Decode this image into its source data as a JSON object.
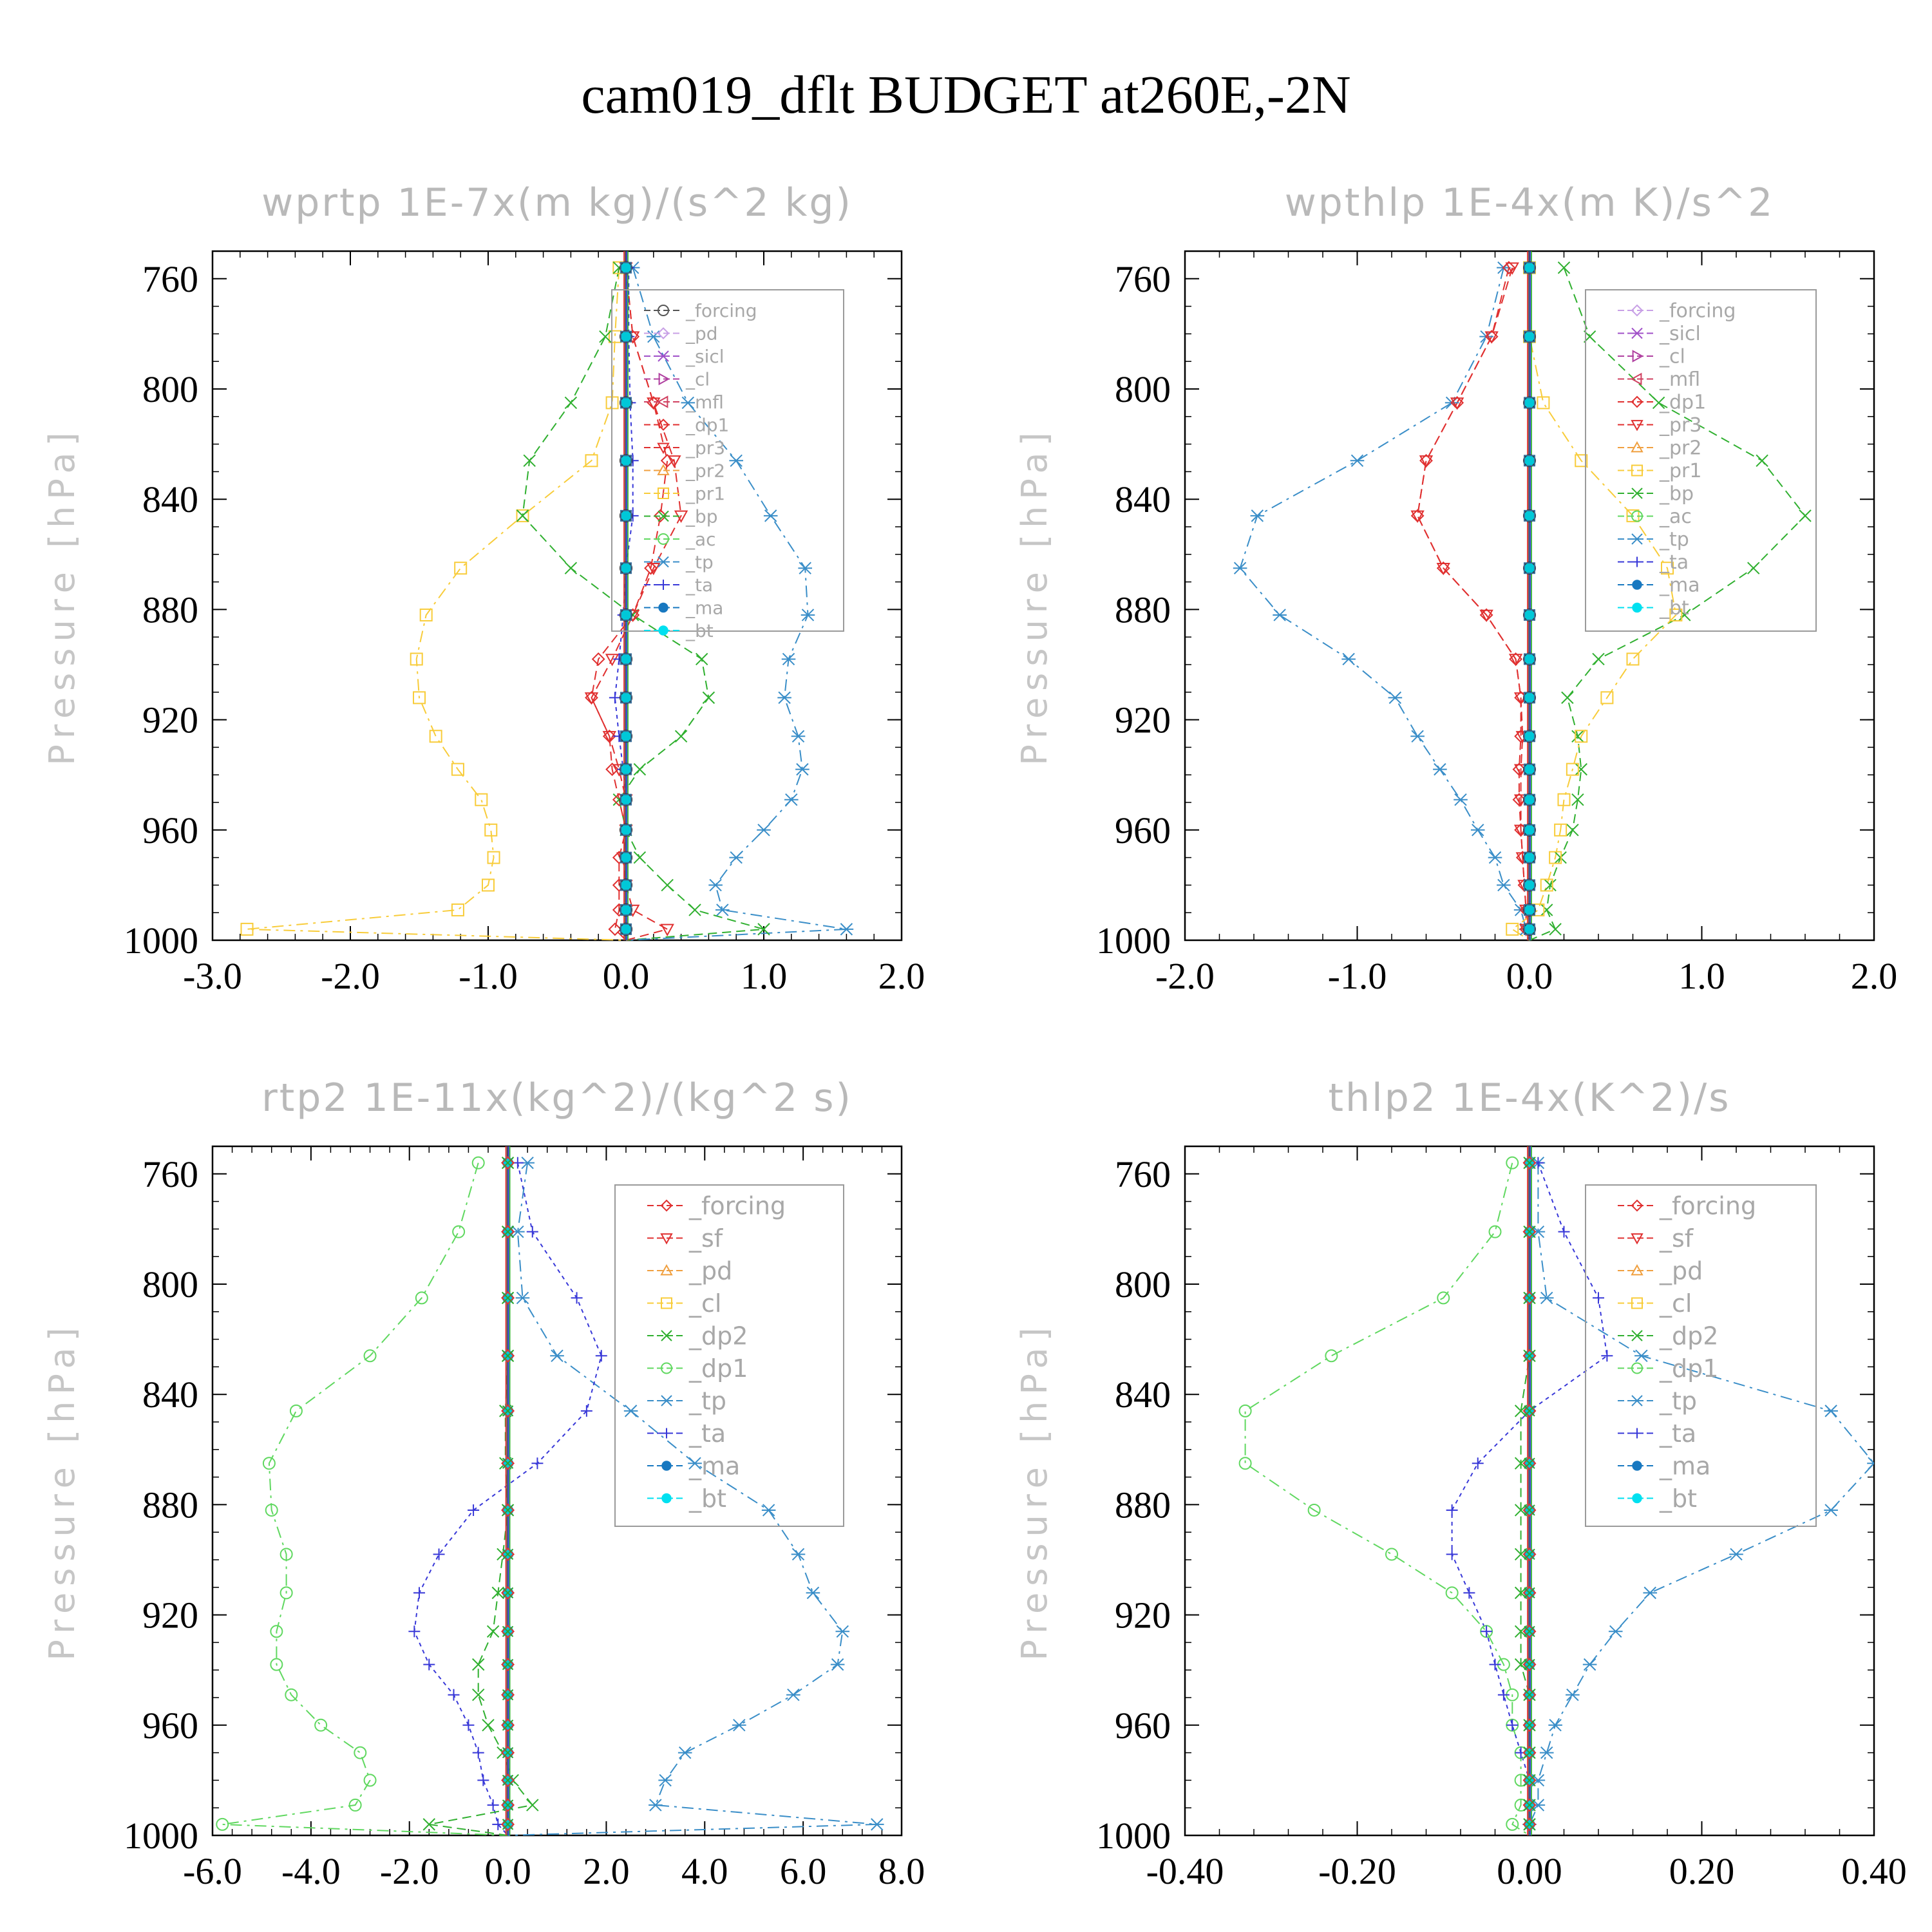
{
  "title": "cam019_dflt  BUDGET at260E,-2N",
  "ylabel": "Pressure [hPa]",
  "colors": {
    "forcing_dark": "#555555",
    "pd": "#c8a0e6",
    "sicl": "#a050c8",
    "cl_mag": "#b040a0",
    "mfl": "#d04060",
    "red": "#e03030",
    "orange": "#f0a040",
    "yellow": "#f8cc3a",
    "green": "#30b030",
    "lightgreen": "#60d860",
    "tp": "#3a8ec8",
    "ta": "#3838d8",
    "ma": "#1878c0",
    "bt": "#00e0f0"
  },
  "chart_data": [
    {
      "type": "line",
      "title": "wprtp  1E-7x(m kg)/(s^2 kg)",
      "ylabel": "Pressure [hPa]",
      "ylim": [
        1000,
        750
      ],
      "yticks": [
        760,
        800,
        840,
        880,
        920,
        960,
        1000
      ],
      "xlim": [
        -3.0,
        2.0
      ],
      "xticks": [
        -3.0,
        -2.0,
        -1.0,
        0.0,
        1.0,
        2.0
      ],
      "xtick_labels": [
        "-3.0",
        "-2.0",
        "-1.0",
        "0.0",
        "1.0",
        "2.0"
      ],
      "legend": [
        "_forcing",
        "_pd",
        "_sicl",
        "_cl",
        "_mfl",
        "_dp1",
        "_pr3",
        "_pr2",
        "_pr1",
        "_bp",
        "_ac",
        "_tp",
        "_ta",
        "_ma",
        "_bt"
      ],
      "levels": [
        756,
        781,
        805,
        826,
        846,
        865,
        882,
        898,
        912,
        926,
        938,
        949,
        960,
        970,
        980,
        989,
        996,
        1000
      ],
      "series": [
        {
          "name": "_pr1",
          "color": "#f8cc3a",
          "marker": "square",
          "dash": "18,8,4,8",
          "values": [
            -0.05,
            -0.08,
            -0.1,
            -0.25,
            -0.75,
            -1.2,
            -1.45,
            -1.52,
            -1.5,
            -1.38,
            -1.22,
            -1.05,
            -0.98,
            -0.96,
            -1.0,
            -1.22,
            -2.75,
            0.0
          ]
        },
        {
          "name": "_bp",
          "color": "#30b030",
          "marker": "x",
          "dash": "14,8",
          "values": [
            -0.05,
            -0.15,
            -0.4,
            -0.7,
            -0.75,
            -0.4,
            0.05,
            0.55,
            0.6,
            0.4,
            0.1,
            -0.05,
            0.0,
            0.1,
            0.3,
            0.5,
            1.0,
            0.0
          ]
        },
        {
          "name": "_tp",
          "color": "#3a8ec8",
          "marker": "asterisk",
          "dash": "18,8,4,8",
          "values": [
            0.05,
            0.2,
            0.45,
            0.8,
            1.05,
            1.3,
            1.32,
            1.18,
            1.15,
            1.25,
            1.28,
            1.2,
            1.0,
            0.8,
            0.65,
            0.7,
            1.6,
            0.0
          ]
        },
        {
          "name": "_dp1",
          "color": "#e03030",
          "marker": "diamond",
          "dash": "14,8",
          "values": [
            0.0,
            0.05,
            0.2,
            0.3,
            0.25,
            0.18,
            0.05,
            -0.2,
            -0.25,
            -0.12,
            -0.1,
            -0.05,
            0.0,
            -0.05,
            -0.05,
            -0.05,
            -0.08,
            0.0
          ]
        },
        {
          "name": "_pr3",
          "color": "#e03030",
          "marker": "triangle-down",
          "dash": "14,8",
          "values": [
            0.0,
            0.05,
            0.2,
            0.35,
            0.4,
            0.2,
            0.05,
            -0.1,
            -0.25,
            -0.12,
            -0.05,
            0.0,
            0.0,
            -0.02,
            0.0,
            0.05,
            0.3,
            0.0
          ]
        },
        {
          "name": "_ta",
          "color": "#3838d8",
          "marker": "plus",
          "dash": "6,6",
          "values": [
            0.02,
            0.02,
            0.03,
            0.05,
            0.05,
            0.0,
            -0.02,
            -0.05,
            -0.08,
            -0.05,
            -0.02,
            0.0,
            0.0,
            0.0,
            0.0,
            0.0,
            0.0,
            0.0
          ]
        },
        {
          "name": "_forcing",
          "color": "#555555",
          "marker": "circle",
          "dash": "",
          "values": [
            0,
            0,
            0,
            0,
            0,
            0,
            0,
            0,
            0,
            0,
            0,
            0,
            0,
            0,
            0,
            0,
            0,
            0
          ]
        },
        {
          "name": "_bt",
          "color": "#00e0f0",
          "marker": "dot",
          "dash": "",
          "values": [
            0,
            0,
            0,
            0,
            0,
            0,
            0,
            0,
            0,
            0,
            0,
            0,
            0,
            0,
            0,
            0,
            0,
            0
          ]
        }
      ]
    },
    {
      "type": "line",
      "title": "wpthlp  1E-4x(m K)/s^2",
      "ylabel": "Pressure [hPa]",
      "ylim": [
        1000,
        750
      ],
      "yticks": [
        760,
        800,
        840,
        880,
        920,
        960,
        1000
      ],
      "xlim": [
        -2.0,
        2.0
      ],
      "xticks": [
        -2.0,
        -1.0,
        0.0,
        1.0,
        2.0
      ],
      "xtick_labels": [
        "-2.0",
        "-1.0",
        "0.0",
        "1.0",
        "2.0"
      ],
      "legend": [
        "_forcing",
        "_sicl",
        "_cl",
        "_mfl",
        "_dp1",
        "_pr3",
        "_pr2",
        "_pr1",
        "_bp",
        "_ac",
        "_tp",
        "_ta",
        "_ma",
        "_bt"
      ],
      "levels": [
        756,
        781,
        805,
        826,
        846,
        865,
        882,
        898,
        912,
        926,
        938,
        949,
        960,
        970,
        980,
        989,
        996,
        1000
      ],
      "series": [
        {
          "name": "_tp",
          "color": "#3a8ec8",
          "marker": "asterisk",
          "dash": "18,8,4,8",
          "values": [
            -0.15,
            -0.25,
            -0.45,
            -1.0,
            -1.58,
            -1.68,
            -1.45,
            -1.05,
            -0.78,
            -0.65,
            -0.52,
            -0.4,
            -0.3,
            -0.2,
            -0.15,
            -0.05,
            -0.02,
            0.0
          ]
        },
        {
          "name": "_dp1",
          "color": "#e03030",
          "marker": "diamond",
          "dash": "14,8",
          "values": [
            -0.12,
            -0.22,
            -0.42,
            -0.6,
            -0.65,
            -0.5,
            -0.25,
            -0.08,
            -0.05,
            -0.05,
            -0.06,
            -0.06,
            -0.05,
            -0.04,
            -0.03,
            -0.02,
            -0.02,
            0.0
          ]
        },
        {
          "name": "_pr3",
          "color": "#e03030",
          "marker": "triangle-down",
          "dash": "14,8",
          "values": [
            -0.1,
            -0.22,
            -0.42,
            -0.6,
            -0.65,
            -0.5,
            -0.25,
            -0.08,
            -0.05,
            -0.04,
            -0.05,
            -0.05,
            -0.05,
            -0.04,
            -0.03,
            -0.02,
            -0.02,
            0.0
          ]
        },
        {
          "name": "_bp",
          "color": "#30b030",
          "marker": "x",
          "dash": "14,8",
          "values": [
            0.2,
            0.35,
            0.75,
            1.35,
            1.6,
            1.3,
            0.9,
            0.4,
            0.22,
            0.28,
            0.3,
            0.28,
            0.25,
            0.18,
            0.12,
            0.1,
            0.15,
            0.0
          ]
        },
        {
          "name": "_pr1",
          "color": "#f8cc3a",
          "marker": "square",
          "dash": "18,8,4,8",
          "values": [
            0.0,
            0.0,
            0.08,
            0.3,
            0.6,
            0.8,
            0.85,
            0.6,
            0.45,
            0.3,
            0.25,
            0.2,
            0.18,
            0.15,
            0.1,
            0.05,
            -0.1,
            0.0
          ]
        },
        {
          "name": "_ta",
          "color": "#3838d8",
          "marker": "plus",
          "dash": "6,6",
          "values": [
            0,
            0,
            0,
            0,
            0,
            0,
            0,
            0,
            0,
            0,
            0,
            0,
            0,
            0,
            0,
            0,
            0,
            0
          ]
        },
        {
          "name": "_bt",
          "color": "#00e0f0",
          "marker": "dot",
          "dash": "",
          "values": [
            0,
            0,
            0,
            0,
            0,
            0,
            0,
            0,
            0,
            0,
            0,
            0,
            0,
            0,
            0,
            0,
            0,
            0
          ]
        }
      ]
    },
    {
      "type": "line",
      "title": "rtp2  1E-11x(kg^2)/(kg^2 s)",
      "ylabel": "Pressure [hPa]",
      "ylim": [
        1000,
        750
      ],
      "yticks": [
        760,
        800,
        840,
        880,
        920,
        960,
        1000
      ],
      "xlim": [
        -6.0,
        8.0
      ],
      "xticks": [
        -6.0,
        -4.0,
        -2.0,
        0.0,
        2.0,
        4.0,
        6.0,
        8.0
      ],
      "xtick_labels": [
        "-6.0",
        "-4.0",
        "-2.0",
        "0.0",
        "2.0",
        "4.0",
        "6.0",
        "8.0"
      ],
      "legend": [
        "_forcing",
        "_sf",
        "_pd",
        "_cl",
        "_dp2",
        "_dp1",
        "_tp",
        "_ta",
        "_ma",
        "_bt"
      ],
      "levels": [
        756,
        781,
        805,
        826,
        846,
        865,
        882,
        898,
        912,
        926,
        938,
        949,
        960,
        970,
        980,
        989,
        996,
        1000
      ],
      "series": [
        {
          "name": "_dp1",
          "color": "#60d860",
          "marker": "circle",
          "dash": "18,8,4,8",
          "values": [
            -0.6,
            -1.0,
            -1.75,
            -2.8,
            -4.3,
            -4.85,
            -4.8,
            -4.5,
            -4.5,
            -4.7,
            -4.7,
            -4.4,
            -3.8,
            -3.0,
            -2.8,
            -3.1,
            -5.8,
            0.0
          ]
        },
        {
          "name": "_tp",
          "color": "#3a8ec8",
          "marker": "asterisk",
          "dash": "18,8,4,8",
          "values": [
            0.4,
            0.2,
            0.3,
            1.0,
            2.5,
            3.8,
            5.3,
            5.9,
            6.2,
            6.8,
            6.7,
            5.8,
            4.7,
            3.6,
            3.2,
            3.0,
            7.5,
            0.0
          ]
        },
        {
          "name": "_ta",
          "color": "#3838d8",
          "marker": "plus",
          "dash": "6,6",
          "values": [
            0.2,
            0.5,
            1.4,
            1.9,
            1.6,
            0.6,
            -0.7,
            -1.4,
            -1.8,
            -1.9,
            -1.6,
            -1.1,
            -0.8,
            -0.6,
            -0.5,
            -0.3,
            -0.2,
            0.0
          ]
        },
        {
          "name": "_dp2",
          "color": "#30b030",
          "marker": "x",
          "dash": "14,8",
          "values": [
            0.0,
            0.0,
            0.0,
            0.0,
            -0.05,
            -0.05,
            0.0,
            -0.1,
            -0.2,
            -0.3,
            -0.6,
            -0.6,
            -0.4,
            -0.1,
            0.1,
            0.5,
            -1.6,
            0.0
          ]
        },
        {
          "name": "_forcing",
          "color": "#e03030",
          "marker": "diamond",
          "dash": "",
          "values": [
            0,
            0,
            0,
            0,
            0,
            0,
            0,
            0,
            0,
            0,
            0,
            0,
            0,
            0,
            0,
            0,
            0,
            0
          ]
        },
        {
          "name": "_bt",
          "color": "#00e0f0",
          "marker": "dot",
          "dash": "",
          "values": [
            0,
            0,
            0,
            0,
            0,
            0,
            0,
            0,
            0,
            0,
            0,
            0,
            0,
            0,
            0,
            0,
            0,
            0
          ]
        }
      ]
    },
    {
      "type": "line",
      "title": "thlp2  1E-4x(K^2)/s",
      "ylabel": "Pressure [hPa]",
      "ylim": [
        1000,
        750
      ],
      "yticks": [
        760,
        800,
        840,
        880,
        920,
        960,
        1000
      ],
      "xlim": [
        -0.4,
        0.4
      ],
      "xticks": [
        -0.4,
        -0.2,
        0.0,
        0.2,
        0.4
      ],
      "xtick_labels": [
        "-0.40",
        "-0.20",
        "0.00",
        "0.20",
        "0.40"
      ],
      "legend": [
        "_forcing",
        "_sf",
        "_pd",
        "_cl",
        "_dp2",
        "_dp1",
        "_tp",
        "_ta",
        "_ma",
        "_bt"
      ],
      "levels": [
        756,
        781,
        805,
        826,
        846,
        865,
        882,
        898,
        912,
        926,
        938,
        949,
        960,
        970,
        980,
        989,
        996,
        1000
      ],
      "series": [
        {
          "name": "_dp1",
          "color": "#60d860",
          "marker": "circle",
          "dash": "18,8,4,8",
          "values": [
            -0.02,
            -0.04,
            -0.1,
            -0.23,
            -0.33,
            -0.33,
            -0.25,
            -0.16,
            -0.09,
            -0.05,
            -0.03,
            -0.02,
            -0.02,
            -0.01,
            -0.01,
            -0.01,
            -0.02,
            0.0
          ]
        },
        {
          "name": "_tp",
          "color": "#3a8ec8",
          "marker": "asterisk",
          "dash": "18,8,4,8",
          "values": [
            0.01,
            0.01,
            0.02,
            0.13,
            0.35,
            0.4,
            0.35,
            0.24,
            0.14,
            0.1,
            0.07,
            0.05,
            0.03,
            0.02,
            0.01,
            0.01,
            0.0,
            0.0
          ]
        },
        {
          "name": "_ta",
          "color": "#3838d8",
          "marker": "plus",
          "dash": "6,6",
          "values": [
            0.01,
            0.04,
            0.08,
            0.09,
            0.0,
            -0.06,
            -0.09,
            -0.09,
            -0.07,
            -0.05,
            -0.04,
            -0.03,
            -0.02,
            -0.01,
            0.0,
            0.0,
            0.0,
            0.0
          ]
        },
        {
          "name": "_dp2",
          "color": "#30b030",
          "marker": "x",
          "dash": "14,8",
          "values": [
            0.0,
            0.0,
            0.0,
            0.0,
            -0.01,
            -0.01,
            -0.01,
            -0.01,
            -0.01,
            -0.01,
            -0.01,
            0.0,
            0.0,
            0.0,
            0.0,
            0.0,
            0.0,
            0.0
          ]
        },
        {
          "name": "_forcing",
          "color": "#e03030",
          "marker": "diamond",
          "dash": "",
          "values": [
            0,
            0,
            0,
            0,
            0,
            0,
            0,
            0,
            0,
            0,
            0,
            0,
            0,
            0,
            0,
            0,
            0,
            0
          ]
        },
        {
          "name": "_bt",
          "color": "#00e0f0",
          "marker": "dot",
          "dash": "",
          "values": [
            0,
            0,
            0,
            0,
            0,
            0,
            0,
            0,
            0,
            0,
            0,
            0,
            0,
            0,
            0,
            0,
            0,
            0
          ]
        }
      ]
    }
  ]
}
